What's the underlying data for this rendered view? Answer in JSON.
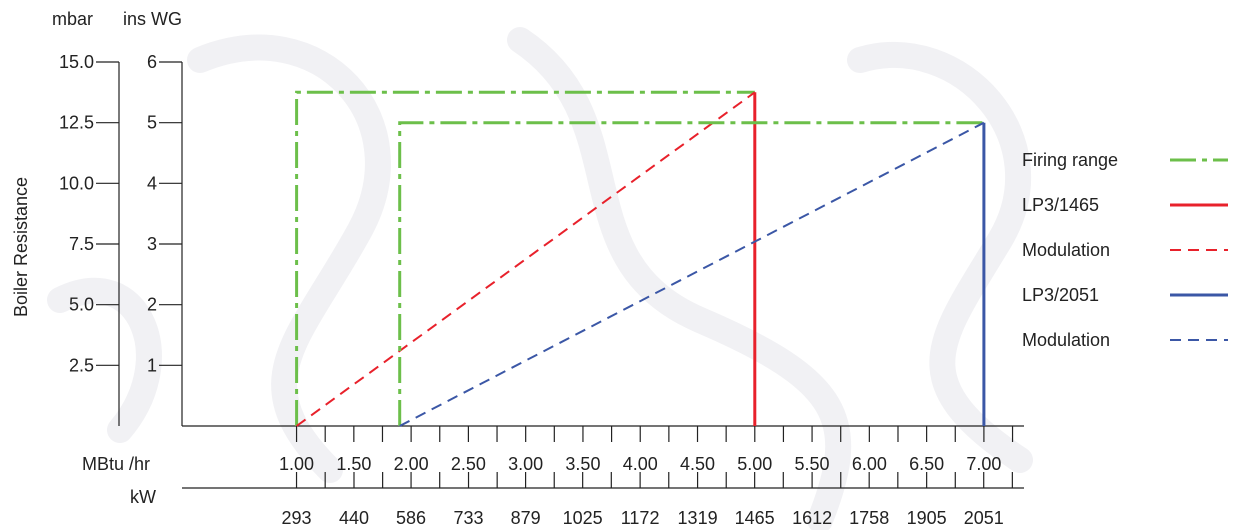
{
  "colors": {
    "firing": "#6cbf4a",
    "red": "#e8212b",
    "blue": "#3b57a6",
    "axis": "#222222"
  },
  "chart_data": {
    "type": "line",
    "ylabel": "Boiler Resistance",
    "y_mbar": {
      "unit": "mbar",
      "ticks": [
        15.0,
        12.5,
        10.0,
        7.5,
        5.0,
        2.5
      ],
      "tick_labels": [
        "15.0",
        "12.5",
        "10.0",
        "7.5",
        "5.0",
        "2.5"
      ],
      "range": [
        0,
        15
      ]
    },
    "y_inswg": {
      "unit": "ins WG",
      "ticks": [
        6,
        5,
        4,
        3,
        2,
        1
      ],
      "tick_labels": [
        "6",
        "5",
        "4",
        "3",
        "2",
        "1"
      ],
      "range": [
        0,
        6
      ]
    },
    "x_mbtu": {
      "unit": "MBtu /hr",
      "range": [
        0.0,
        7.35
      ],
      "ticks": [
        1.0,
        1.5,
        2.0,
        2.5,
        3.0,
        3.5,
        4.0,
        4.5,
        5.0,
        5.5,
        6.0,
        6.5,
        7.0
      ],
      "tick_labels": [
        "1.00",
        "1.50",
        "2.00",
        "2.50",
        "3.00",
        "3.50",
        "4.00",
        "4.50",
        "5.00",
        "5.50",
        "6.00",
        "6.50",
        "7.00"
      ]
    },
    "x_kw": {
      "unit": "kW",
      "ticks": [
        293,
        440,
        586,
        733,
        879,
        1025,
        1172,
        1319,
        1465,
        1612,
        1758,
        1905,
        2051
      ],
      "tick_labels": [
        "293",
        "440",
        "586",
        "733",
        "879",
        "1025",
        "1172",
        "1319",
        "1465",
        "1612",
        "1758",
        "1905",
        "2051"
      ]
    },
    "series": [
      {
        "name": "Firing range",
        "color_key": "firing",
        "style": "dashdot",
        "x": [
          1.0,
          1.0,
          5.0
        ],
        "y": [
          0,
          13.75,
          13.75
        ]
      },
      {
        "name": "LP3/1465",
        "color_key": "red",
        "style": "solid",
        "x": [
          5.0,
          5.0
        ],
        "y": [
          0,
          13.75
        ]
      },
      {
        "name": "Modulation",
        "color_key": "red",
        "style": "dashed",
        "x": [
          1.0,
          5.0
        ],
        "y": [
          0,
          13.75
        ]
      },
      {
        "name": "Firing range",
        "color_key": "firing",
        "style": "dashdot",
        "x": [
          1.9,
          1.9,
          7.0
        ],
        "y": [
          0,
          12.5,
          12.5
        ]
      },
      {
        "name": "LP3/2051",
        "color_key": "blue",
        "style": "solid",
        "x": [
          7.0,
          7.0
        ],
        "y": [
          0,
          12.5
        ]
      },
      {
        "name": "Modulation",
        "color_key": "blue",
        "style": "dashed",
        "x": [
          1.9,
          7.0
        ],
        "y": [
          0,
          12.5
        ]
      }
    ],
    "legend": {
      "placement": "right",
      "entries": [
        {
          "label": "Firing range",
          "color_key": "firing",
          "style": "dashdot"
        },
        {
          "label": "LP3/1465",
          "color_key": "red",
          "style": "solid"
        },
        {
          "label": "Modulation",
          "color_key": "red",
          "style": "dashed"
        },
        {
          "label": "LP3/2051",
          "color_key": "blue",
          "style": "solid"
        },
        {
          "label": "Modulation",
          "color_key": "blue",
          "style": "dashed"
        }
      ]
    }
  }
}
